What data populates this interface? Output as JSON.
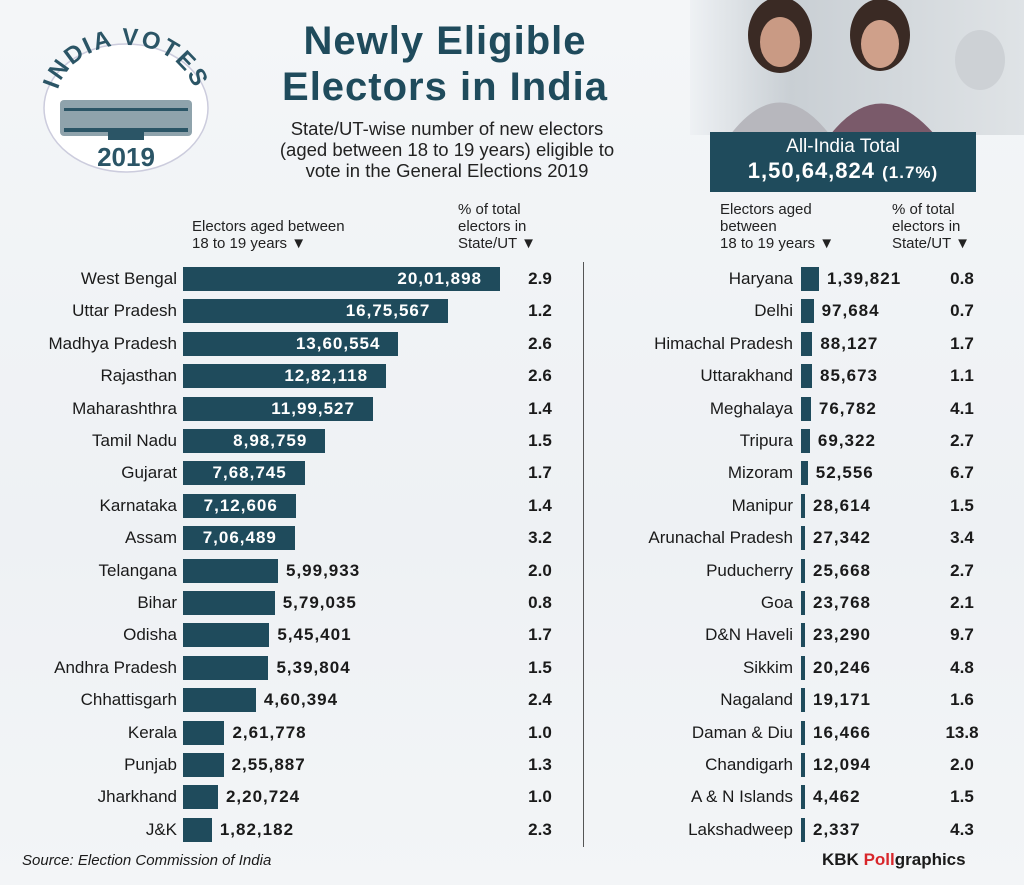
{
  "logo": {
    "text_top": "INDIA VOTES",
    "year": "2019"
  },
  "title": [
    "Newly Eligible",
    "Electors in India"
  ],
  "subtitle": [
    "State/UT-wise number of new electors",
    "(aged between 18 to 19 years) eligible to",
    "vote in the General Elections 2019"
  ],
  "total": {
    "label": "All-India Total",
    "value": "1,50,64,824",
    "pct": "(1.7%)"
  },
  "colors": {
    "bar": "#1f4b5c",
    "accent": "#d8262b"
  },
  "chart_data": {
    "type": "bar",
    "orientation": "horizontal",
    "title": "Newly Eligible Electors in India",
    "left": {
      "header_value": [
        "Electors aged between",
        "18 to 19 years ▼"
      ],
      "header_pct": [
        "% of total",
        "electors in",
        "State/UT ▼"
      ],
      "categories": [
        "West Bengal",
        "Uttar Pradesh",
        "Madhya Pradesh",
        "Rajasthan",
        "Maharashthra",
        "Tamil Nadu",
        "Gujarat",
        "Karnataka",
        "Assam",
        "Telangana",
        "Bihar",
        "Odisha",
        "Andhra Pradesh",
        "Chhattisgarh",
        "Kerala",
        "Punjab",
        "Jharkhand",
        "J&K"
      ],
      "values": [
        2001898,
        1675567,
        1360554,
        1282118,
        1199527,
        898759,
        768745,
        712606,
        706489,
        599933,
        579035,
        545401,
        539804,
        460394,
        261778,
        255887,
        220724,
        182182
      ],
      "labels": [
        "20,01,898",
        "16,75,567",
        "13,60,554",
        "12,82,118",
        "11,99,527",
        "8,98,759",
        "7,68,745",
        "7,12,606",
        "7,06,489",
        "5,99,933",
        "5,79,035",
        "5,45,401",
        "5,39,804",
        "4,60,394",
        "2,61,778",
        "2,55,887",
        "2,20,724",
        "1,82,182"
      ],
      "pct": [
        "2.9",
        "1.2",
        "2.6",
        "2.6",
        "1.4",
        "1.5",
        "1.7",
        "1.4",
        "3.2",
        "2.0",
        "0.8",
        "1.7",
        "1.5",
        "2.4",
        "1.0",
        "1.3",
        "1.0",
        "2.3"
      ]
    },
    "right": {
      "header_value": [
        "Electors aged",
        "between",
        "18 to 19 years ▼"
      ],
      "header_pct": [
        "% of total",
        "electors in",
        "State/UT ▼"
      ],
      "categories": [
        "Haryana",
        "Delhi",
        "Himachal Pradesh",
        "Uttarakhand",
        "Meghalaya",
        "Tripura",
        "Mizoram",
        "Manipur",
        "Arunachal Pradesh",
        "Puducherry",
        "Goa",
        "D&N Haveli",
        "Sikkim",
        "Nagaland",
        "Daman & Diu",
        "Chandigarh",
        "A & N Islands",
        "Lakshadweep"
      ],
      "values": [
        139821,
        97684,
        88127,
        85673,
        76782,
        69322,
        52556,
        28614,
        27342,
        25668,
        23768,
        23290,
        20246,
        19171,
        16466,
        12094,
        4462,
        2337
      ],
      "labels": [
        "1,39,821",
        "97,684",
        "88,127",
        "85,673",
        "76,782",
        "69,322",
        "52,556",
        "28,614",
        "27,342",
        "25,668",
        "23,768",
        "23,290",
        "20,246",
        "19,171",
        "16,466",
        "12,094",
        "4,462",
        "2,337"
      ],
      "pct": [
        "0.8",
        "0.7",
        "1.7",
        "1.1",
        "4.1",
        "2.7",
        "6.7",
        "1.5",
        "3.4",
        "2.7",
        "2.1",
        "9.7",
        "4.8",
        "1.6",
        "13.8",
        "2.0",
        "1.5",
        "4.3"
      ]
    }
  },
  "footer": {
    "source": "Source: Election Commission of India",
    "credit_a": "KBK ",
    "credit_b": "Poll",
    "credit_c": "graphics"
  }
}
